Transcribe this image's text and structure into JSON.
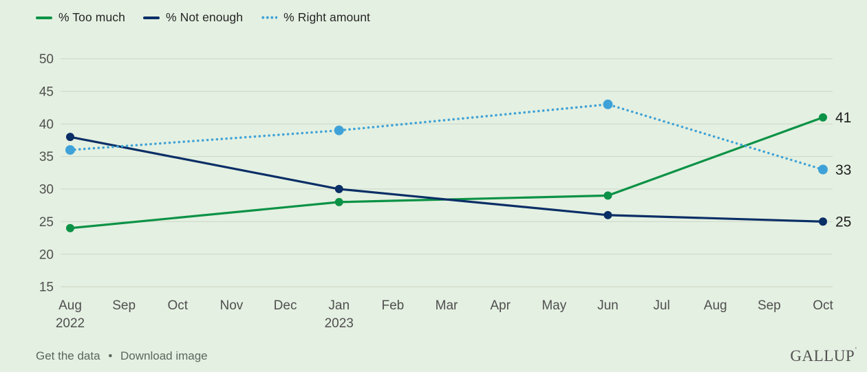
{
  "page": {
    "background": "#e4f0e1",
    "gridline_color": "#cbd6c8",
    "axis_label_color": "#4f4f4f",
    "end_label_color": "#1e1e1e"
  },
  "chart_data": {
    "type": "line",
    "title": "",
    "xlabel": "",
    "ylabel": "",
    "ylim": [
      15,
      50
    ],
    "yticks": [
      50,
      45,
      40,
      35,
      30,
      25,
      20,
      15
    ],
    "grid": "horizontal",
    "legend_position": "top-left",
    "x_tick_labels": [
      [
        "Aug",
        "2022"
      ],
      [
        "Sep"
      ],
      [
        "Oct"
      ],
      [
        "Nov"
      ],
      [
        "Dec"
      ],
      [
        "Jan",
        "2023"
      ],
      [
        "Feb"
      ],
      [
        "Mar"
      ],
      [
        "Apr"
      ],
      [
        "May"
      ],
      [
        "Jun"
      ],
      [
        "Jul"
      ],
      [
        "Aug"
      ],
      [
        "Sep"
      ],
      [
        "Oct"
      ]
    ],
    "series": [
      {
        "name": "% Too much",
        "color": "#0b9246",
        "line_style": "solid",
        "points": [
          [
            0,
            24
          ],
          [
            5,
            28
          ],
          [
            10,
            29
          ],
          [
            14,
            41
          ]
        ],
        "end_label": "41"
      },
      {
        "name": "% Not enough",
        "color": "#0a2e66",
        "line_style": "solid",
        "points": [
          [
            0,
            38
          ],
          [
            5,
            30
          ],
          [
            10,
            26
          ],
          [
            14,
            25
          ]
        ],
        "end_label": "25"
      },
      {
        "name": "% Right amount",
        "color": "#3ea2d8",
        "line_style": "dotted",
        "points": [
          [
            0,
            36
          ],
          [
            5,
            39
          ],
          [
            10,
            43
          ],
          [
            14,
            33
          ]
        ],
        "end_label": "33"
      }
    ]
  },
  "footer": {
    "links": [
      "Get the data",
      "Download image"
    ],
    "separator": "•",
    "logo": "GALLUP",
    "logo_mark": "’"
  }
}
